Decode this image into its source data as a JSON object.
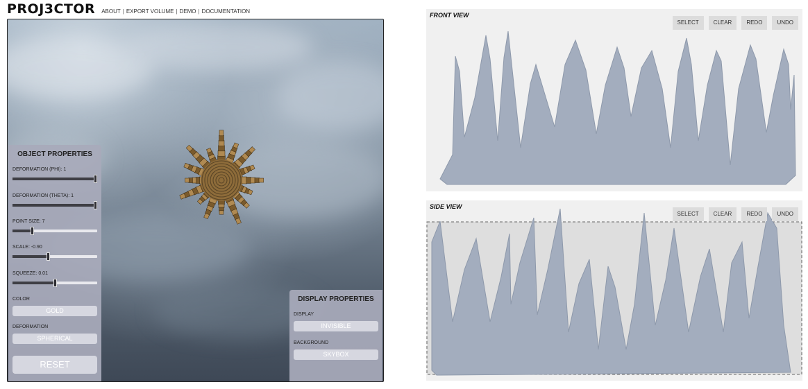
{
  "header": {
    "brand": "PROJ3CTOR",
    "nav": [
      {
        "label": "ABOUT"
      },
      {
        "label": "EXPORT VOLUME"
      },
      {
        "label": "DEMO"
      },
      {
        "label": "DOCUMENTATION"
      }
    ],
    "separator": "|"
  },
  "object_properties": {
    "title": "OBJECT PROPERTIES",
    "sliders": [
      {
        "label": "DEFORMATION (PHI): 1",
        "level": 1.0
      },
      {
        "label": "DEFORMATION (THETA): 1",
        "level": 1.0
      },
      {
        "label": "POINT SIZE: 7",
        "level": 0.22
      },
      {
        "label": "SCALE: -0.90",
        "level": 0.42
      },
      {
        "label": "SQUEEZE: 0.01",
        "level": 0.5
      }
    ],
    "color_label": "COLOR",
    "color_value": "GOLD",
    "deformation_label": "DEFORMATION",
    "deformation_value": "SPHERICAL",
    "reset_label": "RESET"
  },
  "display_properties": {
    "title": "DISPLAY PROPERTIES",
    "display_label": "DISPLAY",
    "display_value": "INVISIBLE",
    "background_label": "BACKGROUND",
    "background_value": "SKYBOX"
  },
  "front_view": {
    "title": "FRONT VIEW",
    "tools": {
      "select": "SELECT",
      "clear": "CLEAR",
      "redo": "REDO",
      "undo": "UNDO"
    }
  },
  "side_view": {
    "title": "SIDE VIEW",
    "tools": {
      "select": "SELECT",
      "clear": "CLEAR",
      "redo": "REDO",
      "undo": "UNDO"
    }
  },
  "colors": {
    "silhouette_fill": "#a3adbe",
    "silhouette_stroke": "#8e99ab",
    "object_gold": "#b08a52",
    "panel_bg": "#a8aaba"
  }
}
